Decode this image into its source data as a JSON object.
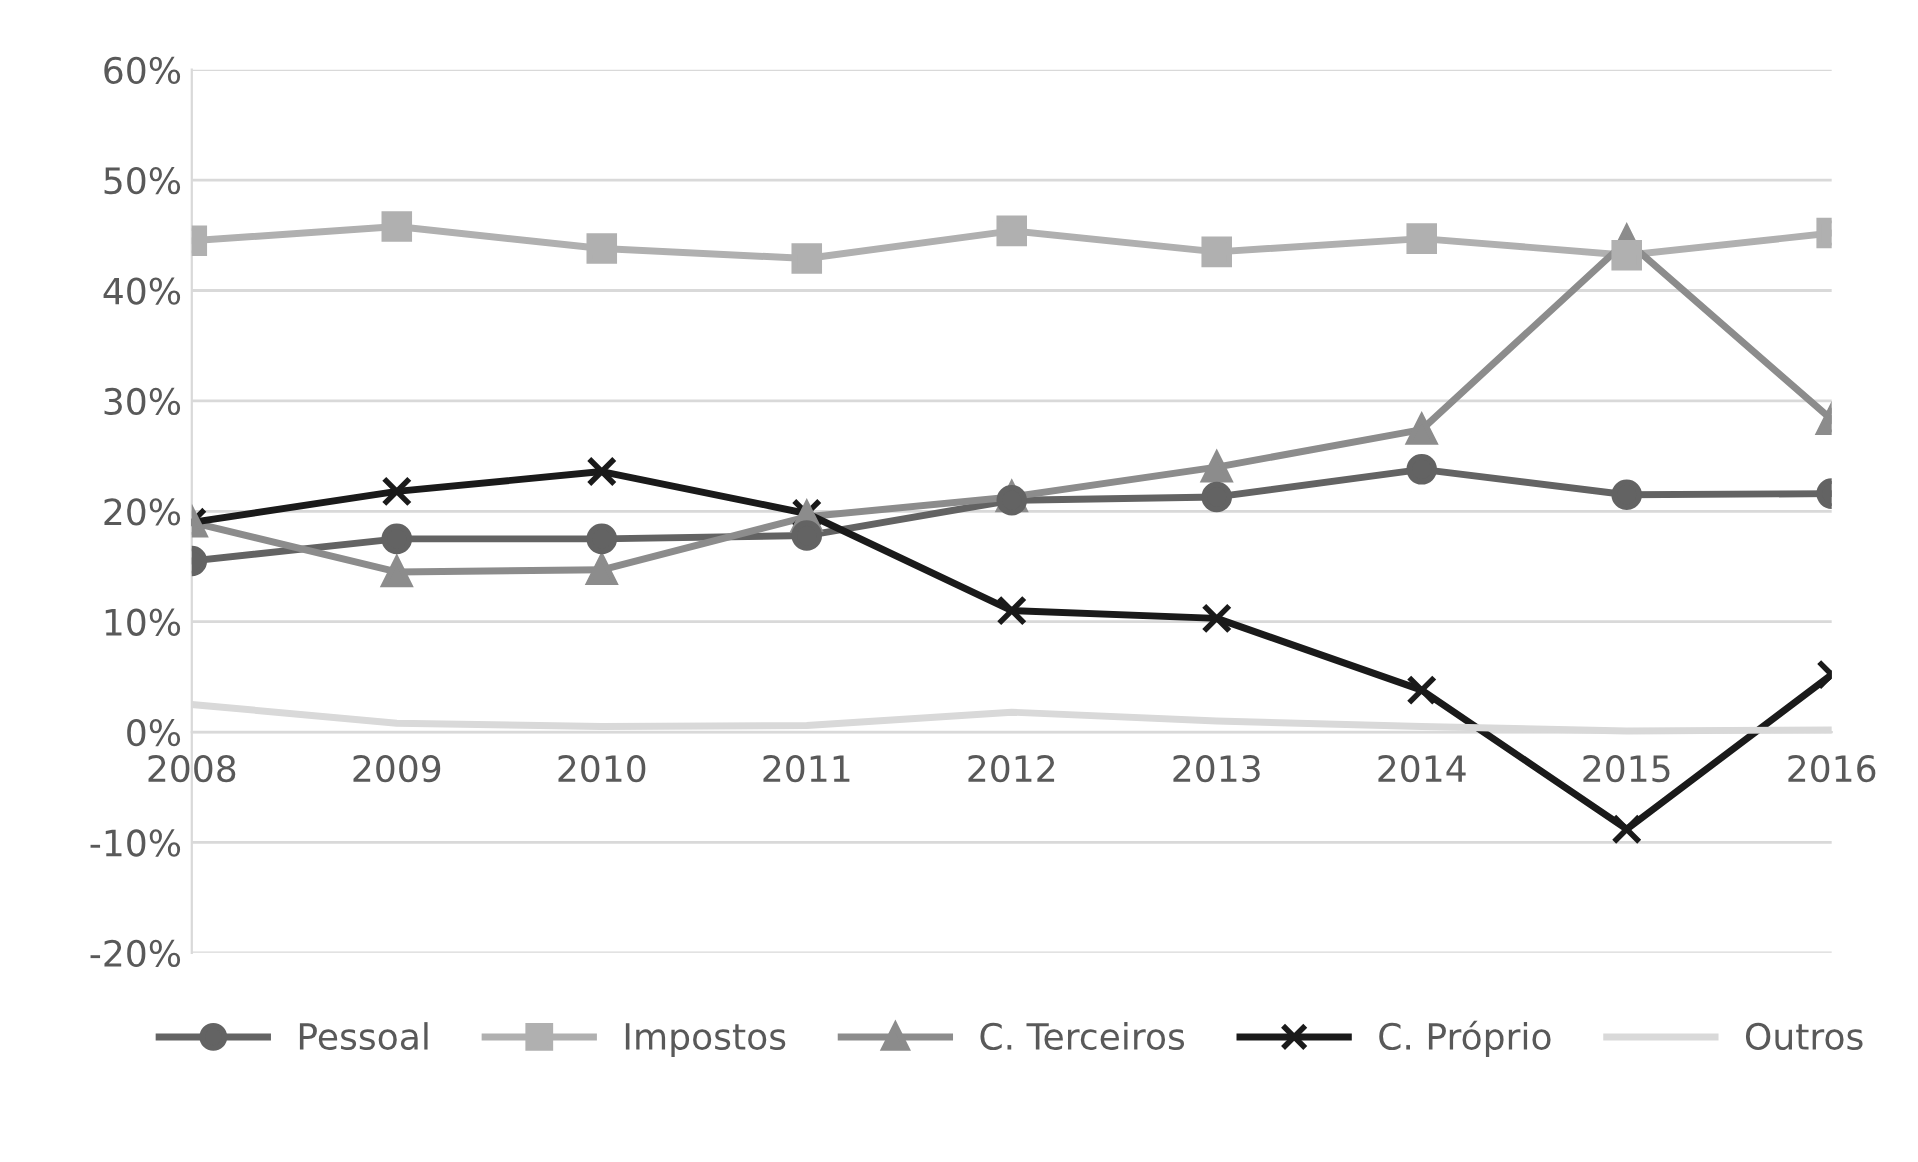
{
  "chart_data": {
    "type": "line",
    "categories": [
      "2008",
      "2009",
      "2010",
      "2011",
      "2012",
      "2013",
      "2014",
      "2015",
      "2016"
    ],
    "series": [
      {
        "name": "Pessoal",
        "color": "#636363",
        "marker": "circle",
        "values": [
          15.5,
          17.5,
          17.5,
          17.8,
          21.0,
          21.3,
          23.8,
          21.5,
          21.6
        ]
      },
      {
        "name": "Impostos",
        "color": "#b0b0b0",
        "marker": "square",
        "values": [
          44.5,
          45.8,
          43.8,
          42.9,
          45.4,
          43.5,
          44.7,
          43.2,
          45.2
        ]
      },
      {
        "name": "C. Terceiros",
        "color": "#8c8c8c",
        "marker": "triangle",
        "values": [
          19.0,
          14.5,
          14.7,
          19.5,
          21.3,
          24.0,
          27.4,
          44.5,
          28.3
        ]
      },
      {
        "name": "C. Próprio",
        "color": "#1a1a1a",
        "marker": "cross",
        "values": [
          19.0,
          21.8,
          23.6,
          19.8,
          11.0,
          10.3,
          3.8,
          -8.8,
          5.2
        ]
      },
      {
        "name": "Outros",
        "color": "#d9d9d9",
        "marker": "none",
        "values": [
          2.5,
          0.8,
          0.5,
          0.6,
          1.8,
          1.0,
          0.5,
          0.1,
          0.2
        ]
      }
    ],
    "ylim": [
      -20,
      60
    ],
    "yticks": [
      {
        "value": -20,
        "label": "-20%"
      },
      {
        "value": -10,
        "label": "-10%"
      },
      {
        "value": 0,
        "label": "0%"
      },
      {
        "value": 10,
        "label": "10%"
      },
      {
        "value": 20,
        "label": "20%"
      },
      {
        "value": 30,
        "label": "30%"
      },
      {
        "value": 40,
        "label": "40%"
      },
      {
        "value": 50,
        "label": "50%"
      },
      {
        "value": 60,
        "label": "60%"
      }
    ],
    "grid": "y",
    "legend": "bottom",
    "line_style": "solid"
  }
}
